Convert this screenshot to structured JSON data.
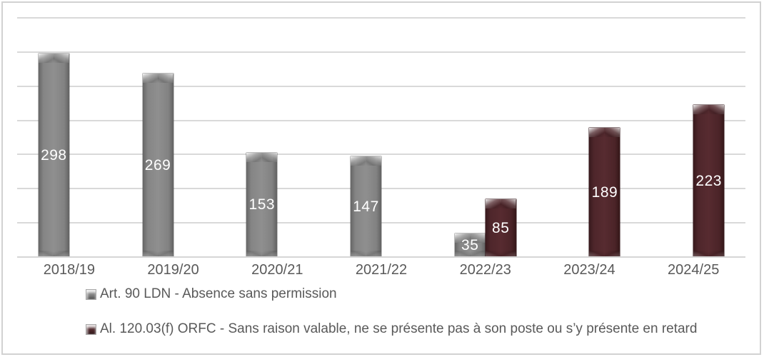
{
  "chart_data": {
    "type": "bar",
    "title": "",
    "xlabel": "",
    "ylabel": "",
    "categories": [
      "2018/19",
      "2019/20",
      "2020/21",
      "2021/22",
      "2022/23",
      "2023/24",
      "2024/25"
    ],
    "series": [
      {
        "name": "Art. 90 LDN - Absence sans permission",
        "color": "#808080",
        "values": [
          298,
          269,
          153,
          147,
          35,
          null,
          null
        ]
      },
      {
        "name": "Al. 120.03(f) ORFC - Sans raison valable, ne se présente pas à son poste ou s’y présente en retard",
        "color": "#4d262a",
        "values": [
          null,
          null,
          null,
          null,
          85,
          189,
          223
        ]
      }
    ],
    "ylim": [
      0,
      350
    ],
    "gridline_step": 50,
    "grid": true,
    "y_axis_labels_visible": false,
    "data_labels": "inside-center",
    "data_label_color": "#ffffff",
    "legend_position": "bottom-left",
    "gridline_color": "#d9d9d9",
    "frame_border_color": "#d2d2d2"
  }
}
